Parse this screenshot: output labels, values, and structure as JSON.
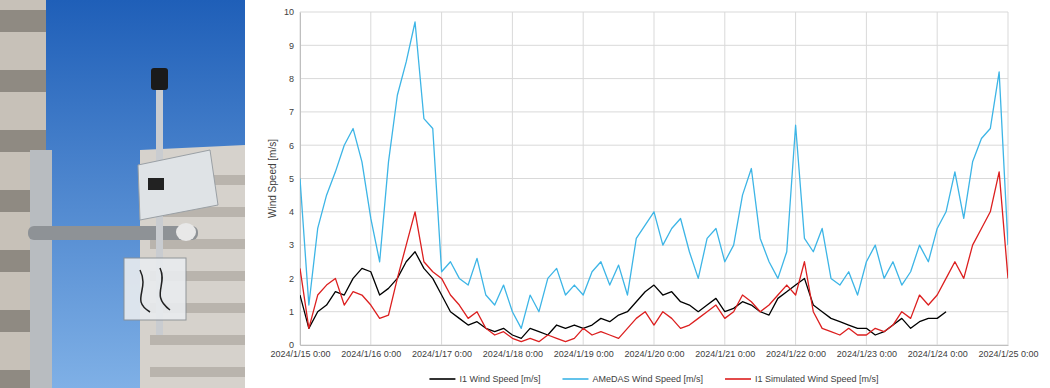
{
  "chart_data": {
    "type": "line",
    "y_label": "Wind Speed [m/s]",
    "x": [
      "2024/1/15 0:00",
      "2024/1/15 3:00",
      "2024/1/15 6:00",
      "2024/1/15 9:00",
      "2024/1/15 12:00",
      "2024/1/15 15:00",
      "2024/1/15 18:00",
      "2024/1/15 21:00",
      "2024/1/16 0:00",
      "2024/1/16 3:00",
      "2024/1/16 6:00",
      "2024/1/16 9:00",
      "2024/1/16 12:00",
      "2024/1/16 15:00",
      "2024/1/16 18:00",
      "2024/1/16 21:00",
      "2024/1/17 0:00",
      "2024/1/17 3:00",
      "2024/1/17 6:00",
      "2024/1/17 9:00",
      "2024/1/17 12:00",
      "2024/1/17 15:00",
      "2024/1/17 18:00",
      "2024/1/17 21:00",
      "2024/1/18 0:00",
      "2024/1/18 3:00",
      "2024/1/18 6:00",
      "2024/1/18 9:00",
      "2024/1/18 12:00",
      "2024/1/18 15:00",
      "2024/1/18 18:00",
      "2024/1/18 21:00",
      "2024/1/19 0:00",
      "2024/1/19 3:00",
      "2024/1/19 6:00",
      "2024/1/19 9:00",
      "2024/1/19 12:00",
      "2024/1/19 15:00",
      "2024/1/19 18:00",
      "2024/1/19 21:00",
      "2024/1/20 0:00",
      "2024/1/20 3:00",
      "2024/1/20 6:00",
      "2024/1/20 9:00",
      "2024/1/20 12:00",
      "2024/1/20 15:00",
      "2024/1/20 18:00",
      "2024/1/20 21:00",
      "2024/1/21 0:00",
      "2024/1/21 3:00",
      "2024/1/21 6:00",
      "2024/1/21 9:00",
      "2024/1/21 12:00",
      "2024/1/21 15:00",
      "2024/1/21 18:00",
      "2024/1/21 21:00",
      "2024/1/22 0:00",
      "2024/1/22 3:00",
      "2024/1/22 6:00",
      "2024/1/22 9:00",
      "2024/1/22 12:00",
      "2024/1/22 15:00",
      "2024/1/22 18:00",
      "2024/1/22 21:00",
      "2024/1/23 0:00",
      "2024/1/23 3:00",
      "2024/1/23 6:00",
      "2024/1/23 9:00",
      "2024/1/23 12:00",
      "2024/1/23 15:00",
      "2024/1/23 18:00",
      "2024/1/23 21:00",
      "2024/1/24 0:00",
      "2024/1/24 3:00",
      "2024/1/24 6:00",
      "2024/1/24 9:00",
      "2024/1/24 12:00",
      "2024/1/24 15:00",
      "2024/1/24 18:00",
      "2024/1/24 21:00",
      "2024/1/25 0:00"
    ],
    "series": [
      {
        "name": "I1 Wind Speed [m/s]",
        "color": "#000000",
        "values": [
          1.5,
          0.5,
          1.0,
          1.2,
          1.6,
          1.5,
          2.0,
          2.3,
          2.2,
          1.5,
          1.7,
          2.0,
          2.5,
          2.8,
          2.3,
          2.0,
          1.5,
          1.0,
          0.8,
          0.6,
          0.7,
          0.5,
          0.4,
          0.5,
          0.3,
          0.2,
          0.5,
          0.4,
          0.3,
          0.6,
          0.5,
          0.6,
          0.5,
          0.6,
          0.8,
          0.7,
          0.9,
          1.0,
          1.3,
          1.6,
          1.8,
          1.5,
          1.6,
          1.3,
          1.2,
          1.0,
          1.2,
          1.4,
          1.0,
          1.1,
          1.3,
          1.2,
          1.0,
          0.9,
          1.4,
          1.6,
          1.8,
          2.0,
          1.2,
          1.0,
          0.8,
          0.7,
          0.6,
          0.5,
          0.5,
          0.3,
          0.4,
          0.6,
          0.8,
          0.5,
          0.7,
          0.8,
          0.8,
          1.0,
          null,
          null,
          null,
          null,
          null,
          null,
          null
        ]
      },
      {
        "name": "AMeDAS Wind Speed [m/s]",
        "color": "#3db5e6",
        "values": [
          5.0,
          1.2,
          3.5,
          4.5,
          5.2,
          6.0,
          6.5,
          5.5,
          3.8,
          2.5,
          5.5,
          7.5,
          8.5,
          9.7,
          6.8,
          6.5,
          2.2,
          2.5,
          2.0,
          1.8,
          2.6,
          1.5,
          1.2,
          1.8,
          1.0,
          0.5,
          1.5,
          1.0,
          2.0,
          2.3,
          1.5,
          1.8,
          1.5,
          2.2,
          2.5,
          1.8,
          2.4,
          1.5,
          3.2,
          3.6,
          4.0,
          3.0,
          3.5,
          3.8,
          2.8,
          2.0,
          3.2,
          3.5,
          2.5,
          3.0,
          4.5,
          5.3,
          3.2,
          2.5,
          2.0,
          2.8,
          6.6,
          3.2,
          2.8,
          3.5,
          2.0,
          1.8,
          2.2,
          1.5,
          2.5,
          3.0,
          2.0,
          2.5,
          1.8,
          2.2,
          3.0,
          2.5,
          3.5,
          4.0,
          5.2,
          3.8,
          5.5,
          6.2,
          6.5,
          8.2,
          3.0
        ]
      },
      {
        "name": "I1 Simulated Wind Speed [m/s]",
        "color": "#dc1f1f",
        "values": [
          2.3,
          0.5,
          1.5,
          1.8,
          2.0,
          1.2,
          1.6,
          1.5,
          1.2,
          0.8,
          0.9,
          2.0,
          3.0,
          4.0,
          2.5,
          2.2,
          2.0,
          1.5,
          1.2,
          0.8,
          1.0,
          0.5,
          0.3,
          0.4,
          0.2,
          0.1,
          0.2,
          0.1,
          0.3,
          0.2,
          0.1,
          0.2,
          0.5,
          0.3,
          0.4,
          0.3,
          0.2,
          0.5,
          0.8,
          1.0,
          0.6,
          1.0,
          0.8,
          0.5,
          0.6,
          0.8,
          1.0,
          1.2,
          0.8,
          1.0,
          1.5,
          1.3,
          1.0,
          1.2,
          1.5,
          1.8,
          1.5,
          2.5,
          1.0,
          0.5,
          0.4,
          0.3,
          0.5,
          0.3,
          0.3,
          0.5,
          0.4,
          0.6,
          1.0,
          0.8,
          1.5,
          1.2,
          1.5,
          2.0,
          2.5,
          2.0,
          3.0,
          3.5,
          4.0,
          5.2,
          2.0
        ]
      }
    ],
    "xlim": [
      "2024/1/15 0:00",
      "2024/1/25 0:00"
    ],
    "xticks": [
      "2024/1/15 0:00",
      "2024/1/16 0:00",
      "2024/1/17 0:00",
      "2024/1/18 0:00",
      "2024/1/19 0:00",
      "2024/1/20 0:00",
      "2024/1/21 0:00",
      "2024/1/22 0:00",
      "2024/1/23 0:00",
      "2024/1/24 0:00",
      "2024/1/25 0:00"
    ],
    "ylim": [
      0,
      10
    ],
    "yticks": [
      0,
      1,
      2,
      3,
      4,
      5,
      6,
      7,
      8,
      9,
      10
    ],
    "grid": true,
    "legend": "bottom"
  }
}
